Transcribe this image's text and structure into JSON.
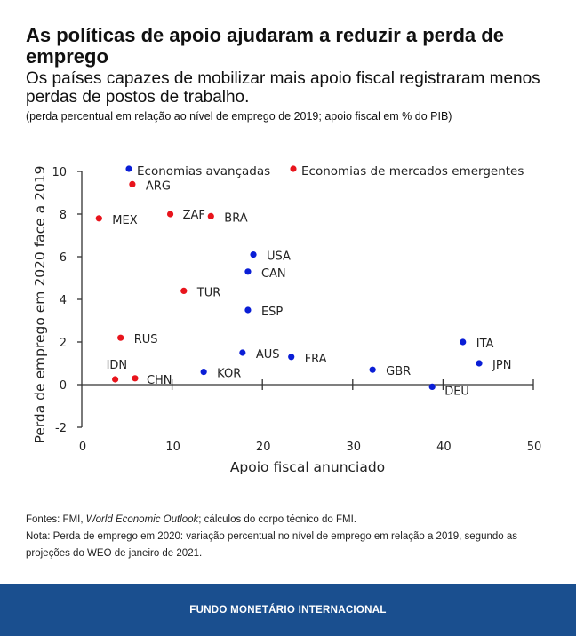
{
  "title": "As políticas de apoio ajudaram a reduzir a perda de emprego",
  "subtitle": "Os países capazes de mobilizar mais apoio fiscal registraram menos perdas de postos de trabalho.",
  "units_note": "(perda percentual em relação ao nível de emprego de 2019; apoio fiscal em % do PIB)",
  "chart_data": {
    "type": "scatter",
    "xlabel": "Apoio fiscal anunciado",
    "ylabel": "Perda de emprego em 2020 face a 2019",
    "xlim": [
      0,
      50
    ],
    "ylim": [
      -2,
      10
    ],
    "xticks": [
      0,
      10,
      20,
      30,
      40,
      50
    ],
    "yticks": [
      -2,
      0,
      2,
      4,
      6,
      8,
      10
    ],
    "legend_position": "top",
    "series": [
      {
        "name": "Economias avançadas",
        "color": "#0a1ed6",
        "points": [
          {
            "label": "USA",
            "x": 19.0,
            "y": 6.1
          },
          {
            "label": "CAN",
            "x": 18.4,
            "y": 5.3
          },
          {
            "label": "ESP",
            "x": 18.4,
            "y": 3.5
          },
          {
            "label": "AUS",
            "x": 17.8,
            "y": 1.5
          },
          {
            "label": "FRA",
            "x": 23.2,
            "y": 1.3
          },
          {
            "label": "KOR",
            "x": 13.5,
            "y": 0.6
          },
          {
            "label": "GBR",
            "x": 32.2,
            "y": 0.7
          },
          {
            "label": "DEU",
            "x": 38.8,
            "y": -0.1
          },
          {
            "label": "ITA",
            "x": 42.2,
            "y": 2.0
          },
          {
            "label": "JPN",
            "x": 44.0,
            "y": 1.0
          }
        ]
      },
      {
        "name": "Economias de mercados emergentes",
        "color": "#e8141c",
        "points": [
          {
            "label": "ARG",
            "x": 5.6,
            "y": 9.4
          },
          {
            "label": "MEX",
            "x": 1.9,
            "y": 7.8
          },
          {
            "label": "ZAF",
            "x": 9.8,
            "y": 8.0
          },
          {
            "label": "BRA",
            "x": 14.3,
            "y": 7.9
          },
          {
            "label": "TUR",
            "x": 11.3,
            "y": 4.4
          },
          {
            "label": "RUS",
            "x": 4.3,
            "y": 2.2
          },
          {
            "label": "IDN",
            "x": 3.7,
            "y": 0.25
          },
          {
            "label": "CHN",
            "x": 5.9,
            "y": 0.3
          }
        ]
      }
    ]
  },
  "notes": {
    "sources_prefix": "Fontes: FMI, ",
    "sources_italic": "World Economic Outlook",
    "sources_suffix": "; cálculos do corpo técnico do FMI.",
    "note": "Nota: Perda de emprego em 2020: variação percentual no nível de emprego em relação a 2019, segundo as projeções do WEO de janeiro de 2021."
  },
  "footer": "FUNDO MONETÁRIO INTERNACIONAL"
}
